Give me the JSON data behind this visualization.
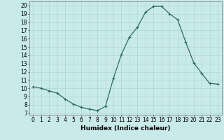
{
  "x": [
    0,
    1,
    2,
    3,
    4,
    5,
    6,
    7,
    8,
    9,
    10,
    11,
    12,
    13,
    14,
    15,
    16,
    17,
    18,
    19,
    20,
    21,
    22,
    23
  ],
  "y": [
    10.2,
    10.0,
    9.7,
    9.4,
    8.7,
    8.1,
    7.7,
    7.5,
    7.3,
    7.8,
    11.2,
    14.1,
    16.2,
    17.4,
    19.2,
    19.9,
    19.9,
    19.0,
    18.3,
    15.6,
    13.1,
    11.8,
    10.6,
    10.5
  ],
  "line_color": "#2d6b5e",
  "marker": "+",
  "marker_size": 3,
  "marker_linewidth": 0.8,
  "line_width": 0.9,
  "bg_color": "#c8eae8",
  "grid_color": "#b0d8d4",
  "xlabel": "Humidex (Indice chaleur)",
  "ylabel_ticks": [
    7,
    8,
    9,
    10,
    11,
    12,
    13,
    14,
    15,
    16,
    17,
    18,
    19,
    20
  ],
  "xlim": [
    -0.5,
    23.5
  ],
  "ylim": [
    6.8,
    20.5
  ],
  "xlabel_fontsize": 6.5,
  "tick_fontsize": 5.5
}
